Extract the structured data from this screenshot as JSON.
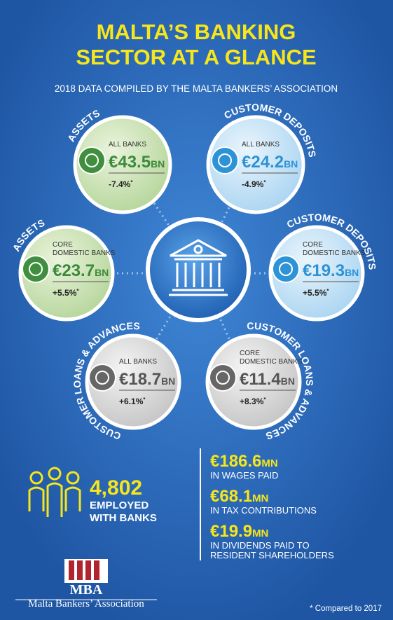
{
  "header": {
    "title_lines": [
      "MALTA’S BANKING",
      "SECTOR AT A GLANCE"
    ],
    "subtitle": "2018 DATA COMPILED BY THE MALTA BANKERS’ ASSOCIATION"
  },
  "circles": [
    {
      "label": "ASSETS",
      "sub": [
        "ALL BANKS"
      ],
      "value": "€43.5",
      "unit": "BN",
      "change": "-7.4%",
      "mark": "*"
    },
    {
      "label": "CUSTOMER DEPOSITS",
      "sub": [
        "ALL BANKS"
      ],
      "value": "€24.2",
      "unit": "BN",
      "change": "-4.9%",
      "mark": "*"
    },
    {
      "label": "ASSETS",
      "sub": [
        "CORE",
        "DOMESTIC BANKS"
      ],
      "value": "€23.7",
      "unit": "BN",
      "change": "+5.5%",
      "mark": "*"
    },
    {
      "label": "CUSTOMER DEPOSITS",
      "sub": [
        "CORE",
        "DOMESTIC BANKS"
      ],
      "value": "€19.3",
      "unit": "BN",
      "change": "+5.5%",
      "mark": "*"
    },
    {
      "label": "CUSTOMER LOANS & ADVANCES",
      "sub": [
        "ALL BANKS"
      ],
      "value": "€18.7",
      "unit": "BN",
      "change": "+6.1%",
      "mark": "*"
    },
    {
      "label": "CUSTOMER LOANS & ADVANCES",
      "sub": [
        "CORE",
        "DOMESTIC BANKS"
      ],
      "value": "€11.4",
      "unit": "BN",
      "change": "+8.3%",
      "mark": "*"
    }
  ],
  "employment": {
    "value": "4,802",
    "lines": [
      "EMPLOYED",
      "WITH BANKS"
    ]
  },
  "stats": [
    {
      "value": "€186.6",
      "unit": "MN",
      "lines": [
        "IN WAGES PAID"
      ]
    },
    {
      "value": "€68.1",
      "unit": "MN",
      "lines": [
        "IN TAX CONTRIBUTIONS"
      ]
    },
    {
      "value": "€19.9",
      "unit": "MN",
      "lines": [
        "IN DIVIDENDS PAID TO",
        "RESIDENT SHAREHOLDERS"
      ]
    }
  ],
  "logo": {
    "short": "MBA",
    "name": "Malta Bankers’ Association"
  },
  "footnote": "* Compared to 2017"
}
